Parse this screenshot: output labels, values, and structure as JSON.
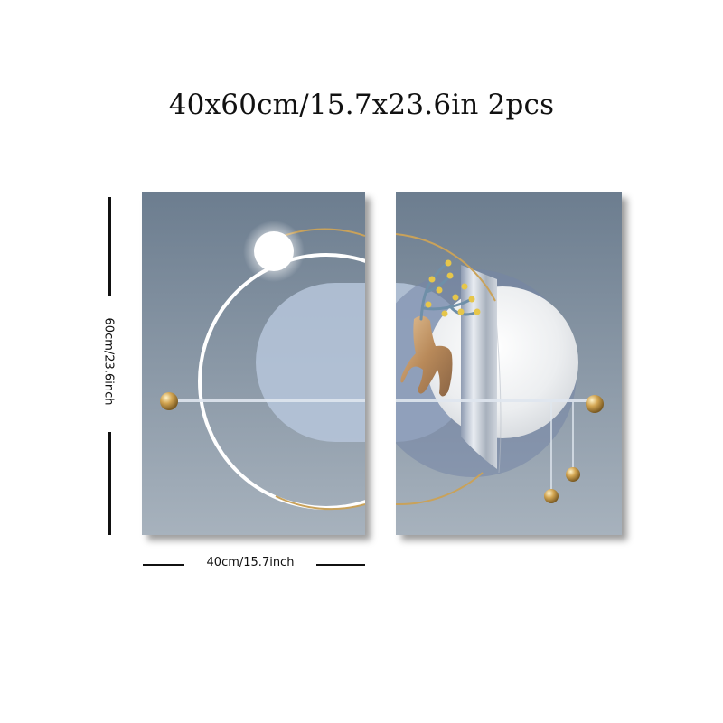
{
  "heading": "40x60cm/15.7x23.6in 2pcs",
  "dimensions": {
    "height_label": "60cm/23.6inch",
    "width_label": "40cm/15.7inch"
  },
  "artwork": {
    "panels": 2,
    "background_top": "#6c7d8f",
    "background_bottom": "#a4b0bc",
    "accent_gold": "#c9a25a",
    "ring_white": "#ffffff"
  }
}
